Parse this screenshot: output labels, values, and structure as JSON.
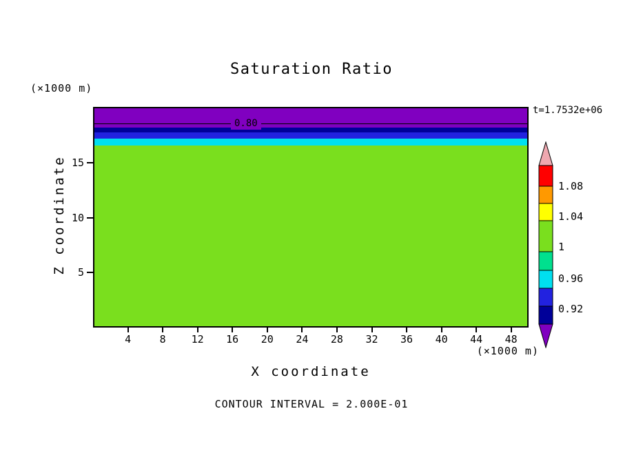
{
  "title": "Saturation Ratio",
  "time_label": "t=1.7532e+06",
  "axis_units": {
    "z": "(×1000 m)",
    "x": "(×1000 m)"
  },
  "footer_note": "CONTOUR INTERVAL = 2.000E-01",
  "chart_data": {
    "type": "heatmap",
    "title": "Saturation Ratio",
    "xlabel": "X coordinate",
    "ylabel": "Z coordinate",
    "x_unit": "(×1000 m)",
    "y_unit": "(×1000 m)",
    "xlim": [
      0,
      50
    ],
    "ylim": [
      0,
      20.1
    ],
    "x_ticks": [
      4,
      8,
      12,
      16,
      20,
      24,
      28,
      32,
      36,
      40,
      44,
      48
    ],
    "y_ticks": [
      5,
      10,
      15
    ],
    "time_annotation": "t=1.7532e+06",
    "contour_interval": "2.000E-01",
    "labeled_contour": {
      "value": "0.80",
      "z": 18.7
    },
    "layers": [
      {
        "name": "layer-purple",
        "value": "< 0.88",
        "z_top": 20.1,
        "z_bottom": 18.34,
        "color": "#8000C0"
      },
      {
        "name": "layer-navy",
        "value": "0.88 - 0.92",
        "z_top": 18.34,
        "z_bottom": 17.9,
        "color": "#000099"
      },
      {
        "name": "layer-blue",
        "value": "0.92 - 0.96",
        "z_top": 17.9,
        "z_bottom": 17.34,
        "color": "#2222E0"
      },
      {
        "name": "layer-cyan",
        "value": "0.96 - 1.00",
        "z_top": 17.34,
        "z_bottom": 16.71,
        "color": "#00E0F0"
      },
      {
        "name": "layer-green",
        "value": "1.00 - 1.04",
        "z_top": 16.71,
        "z_bottom": 0,
        "color": "#7ADF1E"
      }
    ],
    "colorbar": {
      "arrow_top_color": "#EFA8B0",
      "arrow_bottom_color": "#8000C0",
      "band_colors_top_to_bottom": [
        "#FF0000",
        "#FF9900",
        "#FFFF00",
        "#7ADF1E",
        "#00E08E",
        "#00E0F0",
        "#2222E0",
        "#000099"
      ],
      "tick_labels": [
        "1.08",
        "1.04",
        "1",
        "0.96",
        "0.92"
      ]
    }
  }
}
